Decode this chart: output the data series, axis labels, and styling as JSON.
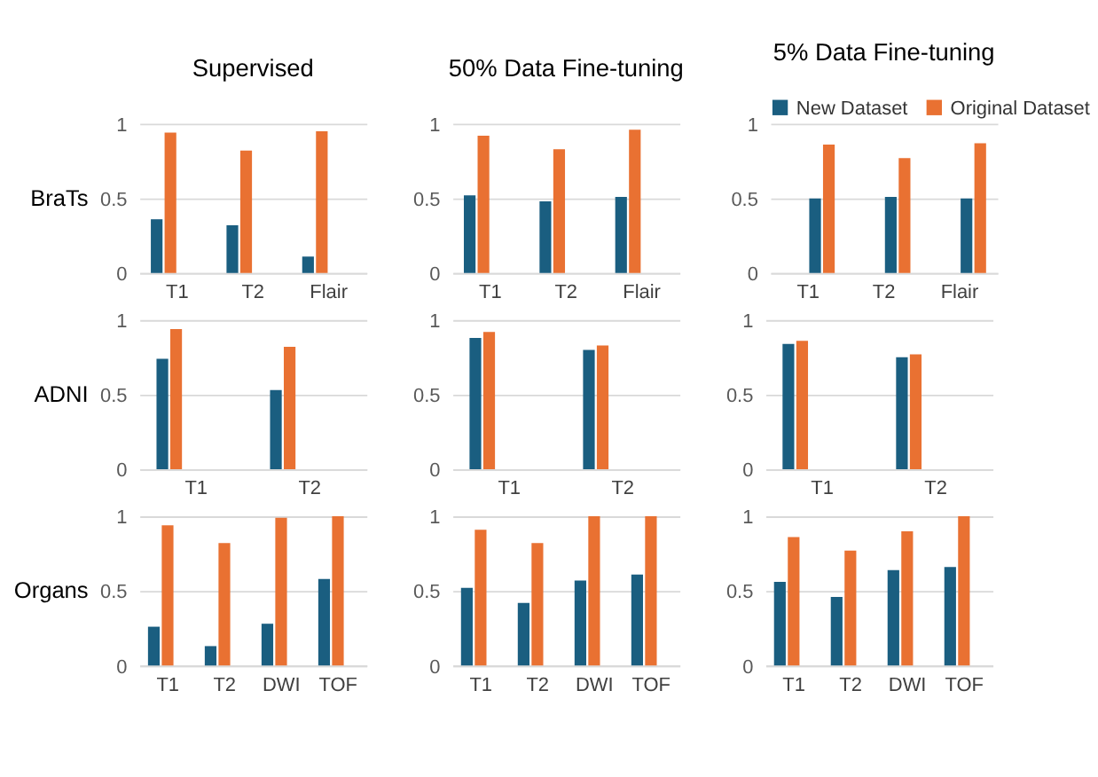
{
  "chart_data": [
    {
      "type": "bar",
      "title": "Supervised",
      "ylabel": "BraTs",
      "categories": [
        "T1",
        "T2",
        "Flair"
      ],
      "series": [
        {
          "color": "#1a5e80",
          "values": [
            0.36,
            0.32,
            0.11
          ]
        },
        {
          "color": "#e97132",
          "values": [
            0.94,
            0.82,
            0.95
          ]
        }
      ],
      "ylim": [
        0,
        1
      ],
      "yticks": [
        0,
        0.5,
        1
      ],
      "grid": "y",
      "legend": false
    },
    {
      "type": "bar",
      "title": "50% Data Fine-tuning",
      "categories": [
        "T1",
        "T2",
        "Flair"
      ],
      "series": [
        {
          "color": "#1a5e80",
          "values": [
            0.52,
            0.48,
            0.51
          ]
        },
        {
          "color": "#e97132",
          "values": [
            0.92,
            0.83,
            0.96
          ]
        }
      ],
      "ylim": [
        0,
        1
      ],
      "yticks": [
        0,
        0.5,
        1
      ],
      "grid": "y",
      "legend": false
    },
    {
      "type": "bar",
      "title": "5% Data Fine-tuning",
      "categories": [
        "T1",
        "T2",
        "Flair"
      ],
      "series": [
        {
          "name": "New Dataset",
          "color": "#1a5e80",
          "values": [
            0.5,
            0.51,
            0.5
          ]
        },
        {
          "name": "Original Dataset",
          "color": "#e97132",
          "values": [
            0.86,
            0.77,
            0.87
          ]
        }
      ],
      "ylim": [
        0,
        1
      ],
      "yticks": [
        0,
        0.5,
        1
      ],
      "grid": "y",
      "legend": "top"
    },
    {
      "type": "bar",
      "ylabel": "ADNI",
      "categories": [
        "T1",
        "T2"
      ],
      "series": [
        {
          "color": "#1a5e80",
          "values": [
            0.74,
            0.53
          ]
        },
        {
          "color": "#e97132",
          "values": [
            0.94,
            0.82
          ]
        }
      ],
      "ylim": [
        0,
        1
      ],
      "yticks": [
        0,
        0.5,
        1
      ],
      "grid": "y",
      "legend": false
    },
    {
      "type": "bar",
      "categories": [
        "T1",
        "T2"
      ],
      "series": [
        {
          "color": "#1a5e80",
          "values": [
            0.88,
            0.8
          ]
        },
        {
          "color": "#e97132",
          "values": [
            0.92,
            0.83
          ]
        }
      ],
      "ylim": [
        0,
        1
      ],
      "yticks": [
        0,
        0.5,
        1
      ],
      "grid": "y",
      "legend": false
    },
    {
      "type": "bar",
      "categories": [
        "T1",
        "T2"
      ],
      "series": [
        {
          "color": "#1a5e80",
          "values": [
            0.84,
            0.75
          ]
        },
        {
          "color": "#e97132",
          "values": [
            0.86,
            0.77
          ]
        }
      ],
      "ylim": [
        0,
        1
      ],
      "yticks": [
        0,
        0.5,
        1
      ],
      "grid": "y",
      "legend": false
    },
    {
      "type": "bar",
      "ylabel": "Organs",
      "categories": [
        "T1",
        "T2",
        "DWI",
        "TOF"
      ],
      "series": [
        {
          "color": "#1a5e80",
          "values": [
            0.26,
            0.13,
            0.28,
            0.58
          ]
        },
        {
          "color": "#e97132",
          "values": [
            0.94,
            0.82,
            0.99,
            1.0
          ]
        }
      ],
      "ylim": [
        0,
        1
      ],
      "yticks": [
        0,
        0.5,
        1
      ],
      "grid": "y",
      "legend": false
    },
    {
      "type": "bar",
      "categories": [
        "T1",
        "T2",
        "DWI",
        "TOF"
      ],
      "series": [
        {
          "color": "#1a5e80",
          "values": [
            0.52,
            0.42,
            0.57,
            0.61
          ]
        },
        {
          "color": "#e97132",
          "values": [
            0.91,
            0.82,
            1.0,
            1.0
          ]
        }
      ],
      "ylim": [
        0,
        1
      ],
      "yticks": [
        0,
        0.5,
        1
      ],
      "grid": "y",
      "legend": false
    },
    {
      "type": "bar",
      "categories": [
        "T1",
        "T2",
        "DWI",
        "TOF"
      ],
      "series": [
        {
          "color": "#1a5e80",
          "values": [
            0.56,
            0.46,
            0.64,
            0.66
          ]
        },
        {
          "color": "#e97132",
          "values": [
            0.86,
            0.77,
            0.9,
            1.0
          ]
        }
      ],
      "ylim": [
        0,
        1
      ],
      "yticks": [
        0,
        0.5,
        1
      ],
      "grid": "y",
      "legend": false
    }
  ]
}
